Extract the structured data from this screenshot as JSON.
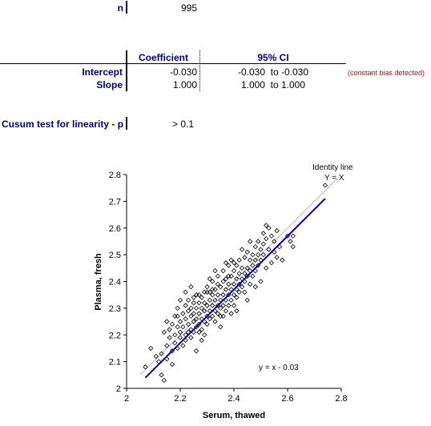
{
  "summary": {
    "n_label": "n",
    "n_value": "995"
  },
  "table": {
    "headers": [
      "Coefficient",
      "95% CI"
    ],
    "rows": [
      {
        "label": "Intercept",
        "coefficient": "-0.030",
        "ci": "-0.030  to -0.030",
        "note": "(constant bias detected)"
      },
      {
        "label": "Slope",
        "coefficient": "1.000",
        "ci": "1.000  to 1.000",
        "note": ""
      }
    ]
  },
  "cusum": {
    "label": "Cusum test for linearity - p",
    "value": "> 0.1"
  },
  "colors": {
    "label_color": "#000080",
    "note_color": "#cc0000",
    "regression_line": "#0000b4",
    "identity_line": "#b4b4b4"
  },
  "chart_data": {
    "type": "scatter",
    "xlabel": "Serum, thawed",
    "ylabel": "Plasma, fresh",
    "xlim": [
      2,
      2.8
    ],
    "ylim": [
      2,
      2.8
    ],
    "xticks": [
      "2",
      "2.2",
      "2.4",
      "2.6",
      "2.8"
    ],
    "yticks": [
      "2",
      "2.1",
      "2.2",
      "2.3",
      "2.4",
      "2.5",
      "2.6",
      "2.7",
      "2.8"
    ],
    "grid": false,
    "identity_label_1": "Identity line",
    "identity_label_2": "Y = X",
    "fit_label": "y = x - 0.03",
    "fit_line": {
      "intercept": -0.03,
      "slope": 1.0,
      "x": [
        2.07,
        2.74
      ]
    },
    "identity_line": {
      "x": [
        2.05,
        2.79
      ]
    },
    "points": [
      [
        2.07,
        2.08
      ],
      [
        2.09,
        2.15
      ],
      [
        2.11,
        2.12
      ],
      [
        2.12,
        2.1
      ],
      [
        2.13,
        2.05
      ],
      [
        2.13,
        2.13
      ],
      [
        2.14,
        2.03
      ],
      [
        2.14,
        2.21
      ],
      [
        2.15,
        2.16
      ],
      [
        2.15,
        2.11
      ],
      [
        2.16,
        2.19
      ],
      [
        2.16,
        2.22
      ],
      [
        2.17,
        2.24
      ],
      [
        2.17,
        2.14
      ],
      [
        2.18,
        2.17
      ],
      [
        2.18,
        2.2
      ],
      [
        2.18,
        2.27
      ],
      [
        2.19,
        2.23
      ],
      [
        2.19,
        2.15
      ],
      [
        2.19,
        2.3
      ],
      [
        2.2,
        2.19
      ],
      [
        2.2,
        2.25
      ],
      [
        2.2,
        2.21
      ],
      [
        2.21,
        2.28
      ],
      [
        2.21,
        2.16
      ],
      [
        2.21,
        2.23
      ],
      [
        2.22,
        2.31
      ],
      [
        2.22,
        2.2
      ],
      [
        2.22,
        2.26
      ],
      [
        2.22,
        2.18
      ],
      [
        2.23,
        2.24
      ],
      [
        2.23,
        2.29
      ],
      [
        2.23,
        2.21
      ],
      [
        2.23,
        2.33
      ],
      [
        2.24,
        2.27
      ],
      [
        2.24,
        2.22
      ],
      [
        2.24,
        2.3
      ],
      [
        2.24,
        2.19
      ],
      [
        2.25,
        2.25
      ],
      [
        2.25,
        2.32
      ],
      [
        2.25,
        2.21
      ],
      [
        2.25,
        2.28
      ],
      [
        2.26,
        2.23
      ],
      [
        2.26,
        2.3
      ],
      [
        2.26,
        2.35
      ],
      [
        2.26,
        2.26
      ],
      [
        2.27,
        2.21
      ],
      [
        2.27,
        2.28
      ],
      [
        2.27,
        2.32
      ],
      [
        2.27,
        2.24
      ],
      [
        2.28,
        2.3
      ],
      [
        2.28,
        2.26
      ],
      [
        2.28,
        2.34
      ],
      [
        2.28,
        2.22
      ],
      [
        2.29,
        2.29
      ],
      [
        2.29,
        2.25
      ],
      [
        2.29,
        2.36
      ],
      [
        2.29,
        2.32
      ],
      [
        2.3,
        2.27
      ],
      [
        2.3,
        2.31
      ],
      [
        2.3,
        2.24
      ],
      [
        2.3,
        2.38
      ],
      [
        2.31,
        2.29
      ],
      [
        2.31,
        2.33
      ],
      [
        2.31,
        2.26
      ],
      [
        2.31,
        2.36
      ],
      [
        2.32,
        2.31
      ],
      [
        2.32,
        2.27
      ],
      [
        2.32,
        2.35
      ],
      [
        2.32,
        2.4
      ],
      [
        2.33,
        2.29
      ],
      [
        2.33,
        2.33
      ],
      [
        2.33,
        2.25
      ],
      [
        2.33,
        2.37
      ],
      [
        2.34,
        2.31
      ],
      [
        2.34,
        2.35
      ],
      [
        2.34,
        2.28
      ],
      [
        2.34,
        2.42
      ],
      [
        2.35,
        2.33
      ],
      [
        2.35,
        2.3
      ],
      [
        2.35,
        2.38
      ],
      [
        2.35,
        2.27
      ],
      [
        2.36,
        2.35
      ],
      [
        2.36,
        2.31
      ],
      [
        2.36,
        2.4
      ],
      [
        2.36,
        2.44
      ],
      [
        2.37,
        2.33
      ],
      [
        2.37,
        2.37
      ],
      [
        2.37,
        2.29
      ],
      [
        2.37,
        2.41
      ],
      [
        2.38,
        2.35
      ],
      [
        2.38,
        2.39
      ],
      [
        2.38,
        2.31
      ],
      [
        2.38,
        2.46
      ],
      [
        2.39,
        2.37
      ],
      [
        2.39,
        2.33
      ],
      [
        2.39,
        2.42
      ],
      [
        2.39,
        2.28
      ],
      [
        2.4,
        2.39
      ],
      [
        2.4,
        2.35
      ],
      [
        2.4,
        2.44
      ],
      [
        2.4,
        2.31
      ],
      [
        2.41,
        2.37
      ],
      [
        2.41,
        2.41
      ],
      [
        2.41,
        2.46
      ],
      [
        2.41,
        2.34
      ],
      [
        2.42,
        2.39
      ],
      [
        2.42,
        2.43
      ],
      [
        2.42,
        2.36
      ],
      [
        2.42,
        2.48
      ],
      [
        2.43,
        2.41
      ],
      [
        2.43,
        2.38
      ],
      [
        2.43,
        2.45
      ],
      [
        2.44,
        2.43
      ],
      [
        2.44,
        2.4
      ],
      [
        2.44,
        2.49
      ],
      [
        2.44,
        2.36
      ],
      [
        2.45,
        2.45
      ],
      [
        2.45,
        2.42
      ],
      [
        2.45,
        2.51
      ],
      [
        2.46,
        2.44
      ],
      [
        2.46,
        2.48
      ],
      [
        2.46,
        2.39
      ],
      [
        2.47,
        2.46
      ],
      [
        2.47,
        2.5
      ],
      [
        2.47,
        2.42
      ],
      [
        2.48,
        2.48
      ],
      [
        2.48,
        2.53
      ],
      [
        2.48,
        2.44
      ],
      [
        2.49,
        2.5
      ],
      [
        2.49,
        2.46
      ],
      [
        2.49,
        2.55
      ],
      [
        2.5,
        2.52
      ],
      [
        2.5,
        2.48
      ],
      [
        2.5,
        2.4
      ],
      [
        2.51,
        2.54
      ],
      [
        2.51,
        2.5
      ],
      [
        2.51,
        2.58
      ],
      [
        2.52,
        2.56
      ],
      [
        2.52,
        2.45
      ],
      [
        2.53,
        2.52
      ],
      [
        2.53,
        2.6
      ],
      [
        2.54,
        2.47
      ],
      [
        2.54,
        2.57
      ],
      [
        2.55,
        2.55
      ],
      [
        2.55,
        2.51
      ],
      [
        2.56,
        2.59
      ],
      [
        2.56,
        2.49
      ],
      [
        2.57,
        2.53
      ],
      [
        2.58,
        2.48
      ],
      [
        2.6,
        2.57
      ],
      [
        2.61,
        2.55
      ],
      [
        2.62,
        2.53
      ],
      [
        2.62,
        2.57
      ],
      [
        2.74,
        2.76
      ],
      [
        2.24,
        2.38
      ],
      [
        2.2,
        2.33
      ],
      [
        2.28,
        2.18
      ],
      [
        2.35,
        2.23
      ],
      [
        2.45,
        2.33
      ],
      [
        2.31,
        2.41
      ],
      [
        2.39,
        2.48
      ],
      [
        2.19,
        2.27
      ],
      [
        2.26,
        2.14
      ],
      [
        2.43,
        2.52
      ],
      [
        2.52,
        2.61
      ],
      [
        2.15,
        2.25
      ],
      [
        2.33,
        2.44
      ],
      [
        2.41,
        2.29
      ],
      [
        2.48,
        2.38
      ],
      [
        2.22,
        2.36
      ],
      [
        2.29,
        2.2
      ],
      [
        2.37,
        2.47
      ],
      [
        2.46,
        2.55
      ],
      [
        2.17,
        2.09
      ],
      [
        2.3,
        2.36
      ],
      [
        2.34,
        2.39
      ],
      [
        2.27,
        2.35
      ],
      [
        2.38,
        2.42
      ],
      [
        2.32,
        2.37
      ],
      [
        2.36,
        2.27
      ],
      [
        2.4,
        2.47
      ],
      [
        2.25,
        2.34
      ]
    ]
  }
}
